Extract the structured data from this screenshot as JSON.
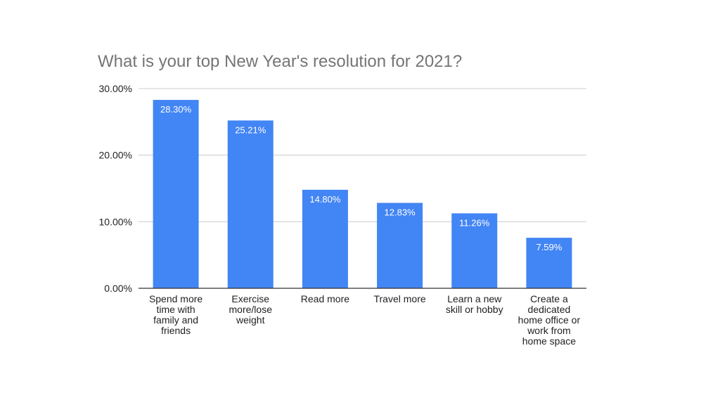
{
  "chart_data": {
    "type": "bar",
    "title": "What is your top New Year's resolution for 2021?",
    "xlabel": "",
    "ylabel": "",
    "categories": [
      "Spend more time with family and friends",
      "Exercise more/lose weight",
      "Read more",
      "Travel more",
      "Learn a new skill or hobby",
      "Create a dedicated home office or work from home space"
    ],
    "category_lines": [
      [
        "Spend more",
        "time with",
        "family and",
        "friends"
      ],
      [
        "Exercise",
        "more/lose",
        "weight"
      ],
      [
        "Read more"
      ],
      [
        "Travel more"
      ],
      [
        "Learn a new",
        "skill or hobby"
      ],
      [
        "Create a",
        "dedicated",
        "home office or",
        "work from",
        "home space"
      ]
    ],
    "values": [
      28.3,
      25.21,
      14.8,
      12.83,
      11.26,
      7.59
    ],
    "data_labels": [
      "28.30%",
      "25.21%",
      "14.80%",
      "12.83%",
      "11.26%",
      "7.59%"
    ],
    "ylim": [
      0,
      30
    ],
    "yticks": [
      0,
      10,
      20,
      30
    ],
    "ytick_labels": [
      "0.00%",
      "10.00%",
      "20.00%",
      "30.00%"
    ],
    "grid": true,
    "bar_color": "#4285f4",
    "grid_color": "#cccccc",
    "axis_color": "#333333"
  }
}
